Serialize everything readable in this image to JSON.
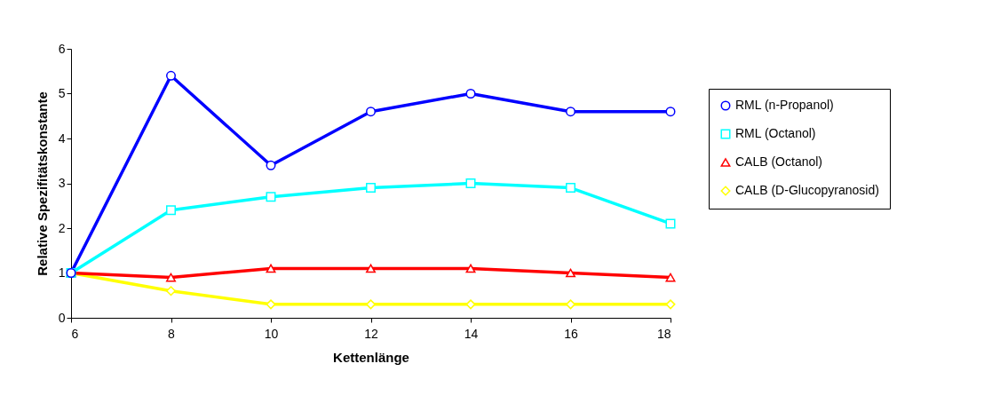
{
  "chart_data": {
    "type": "line",
    "xlabel": "Kettenlänge",
    "ylabel": "Relative Spezifitätskonstante",
    "x": [
      6,
      8,
      10,
      12,
      14,
      16,
      18
    ],
    "xlim": [
      6,
      18
    ],
    "xticks": [
      6,
      8,
      10,
      12,
      14,
      16,
      18
    ],
    "ylim": [
      0,
      6
    ],
    "yticks": [
      0,
      1,
      2,
      3,
      4,
      5,
      6
    ],
    "grid": false,
    "legend": "right",
    "line_style": "solid",
    "series": [
      {
        "name": "RML (n-Propanol)",
        "color": "#0000ff",
        "marker": "circle",
        "values": [
          1,
          5.4,
          3.4,
          4.6,
          5.0,
          4.6,
          4.6
        ]
      },
      {
        "name": "RML (Octanol)",
        "color": "#00ffff",
        "marker": "square",
        "values": [
          1,
          2.4,
          2.7,
          2.9,
          3.0,
          2.9,
          2.1
        ]
      },
      {
        "name": "CALB (Octanol)",
        "color": "#ff0000",
        "marker": "triangle",
        "values": [
          1,
          0.9,
          1.1,
          1.1,
          1.1,
          1.0,
          0.9
        ]
      },
      {
        "name": "CALB (D-Glucopyranosid)",
        "color": "#ffff00",
        "marker": "diamond",
        "values": [
          1,
          0.6,
          0.3,
          0.3,
          0.3,
          0.3,
          0.3
        ]
      }
    ]
  }
}
